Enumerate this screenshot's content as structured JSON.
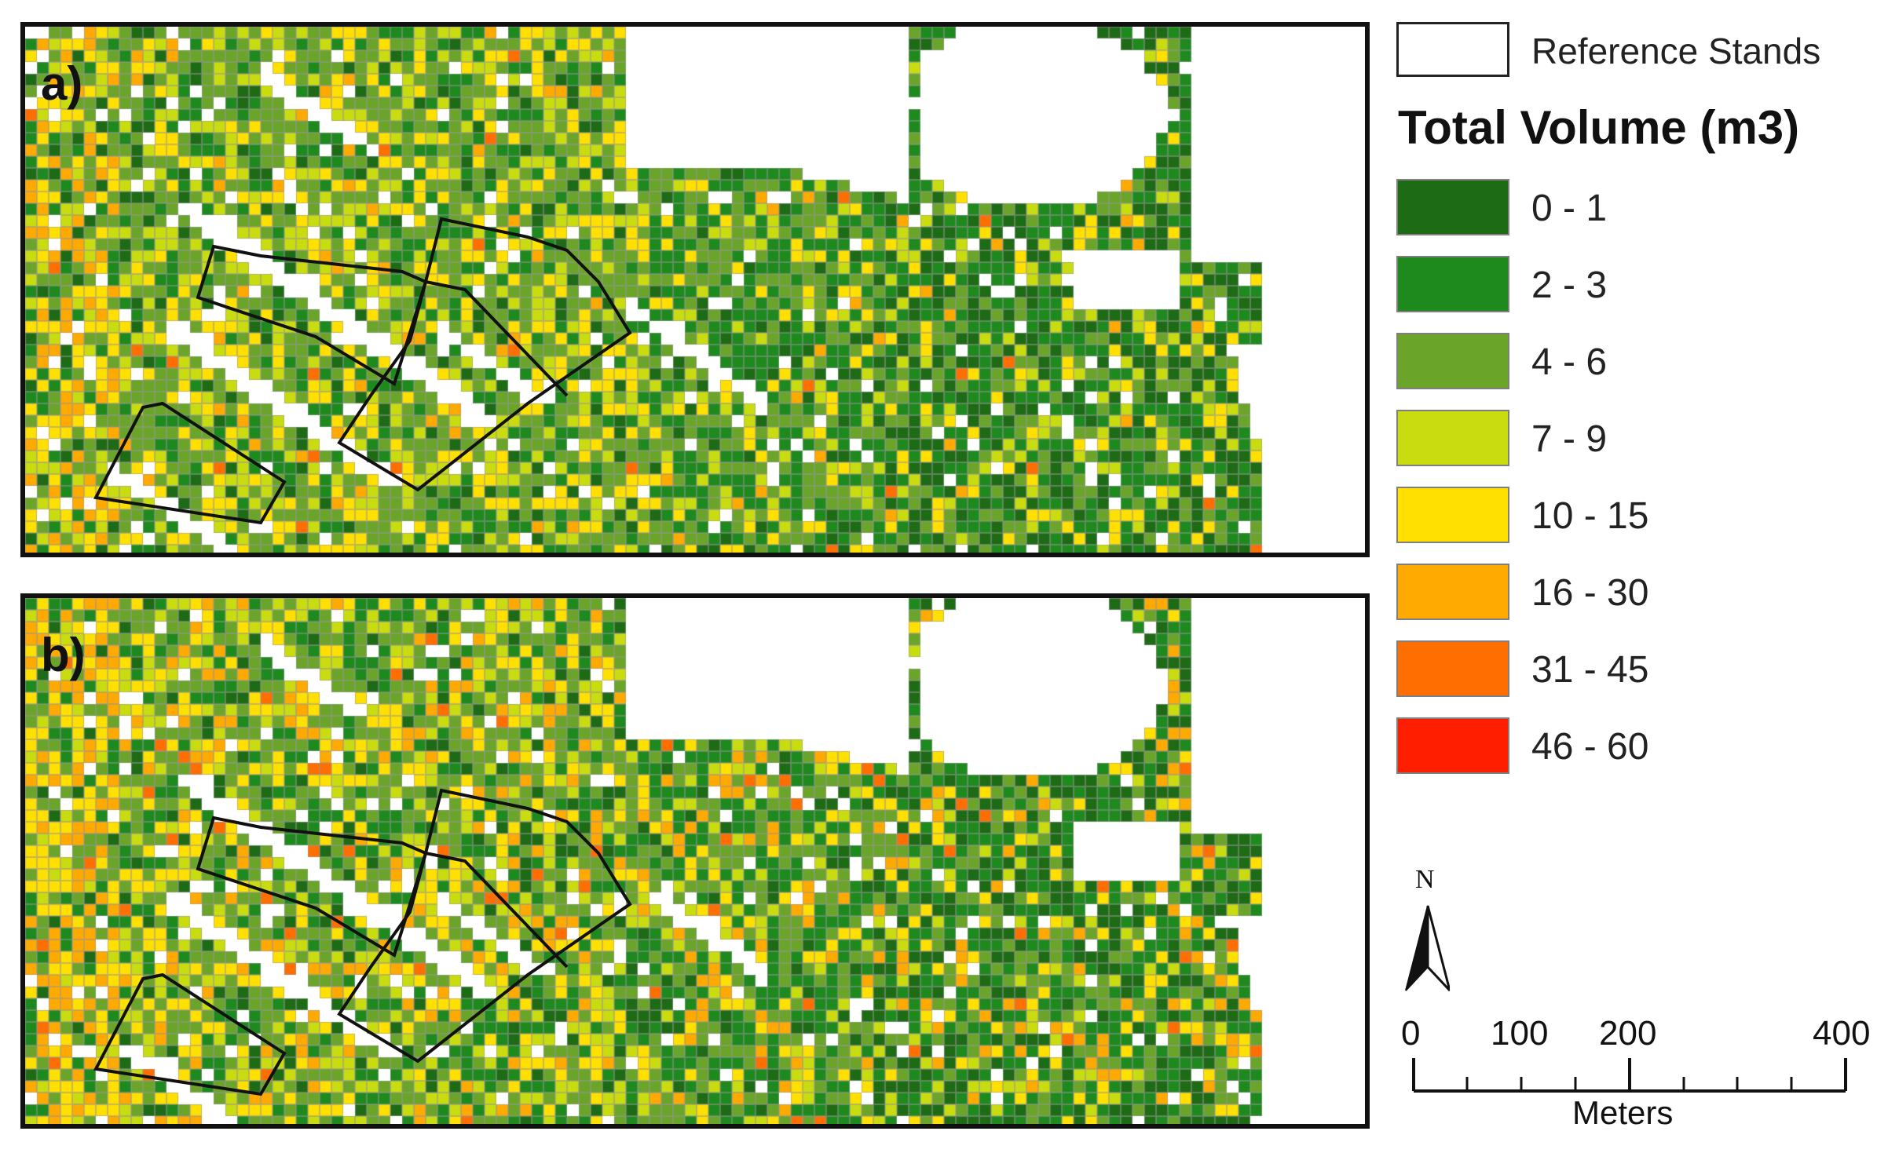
{
  "panels": [
    {
      "id": "a",
      "label": "a)"
    },
    {
      "id": "b",
      "label": "b)"
    }
  ],
  "legend": {
    "reference_label": "Reference Stands",
    "title": "Total Volume (m3)",
    "classes": [
      {
        "label": "0 - 1",
        "color": "#1e6b16"
      },
      {
        "label": "2 - 3",
        "color": "#1e8a1e"
      },
      {
        "label": "4 - 6",
        "color": "#6aa52a"
      },
      {
        "label": "7 - 9",
        "color": "#c8dc10"
      },
      {
        "label": "10 - 15",
        "color": "#ffe000"
      },
      {
        "label": "16 - 30",
        "color": "#ffaa00"
      },
      {
        "label": "31 - 45",
        "color": "#ff6e00"
      },
      {
        "label": "46 - 60",
        "color": "#ff1e00"
      }
    ]
  },
  "north_arrow": {
    "letter": "N"
  },
  "scale_bar": {
    "labels": [
      "0",
      "100",
      "200",
      "400"
    ],
    "units": "Meters"
  }
}
